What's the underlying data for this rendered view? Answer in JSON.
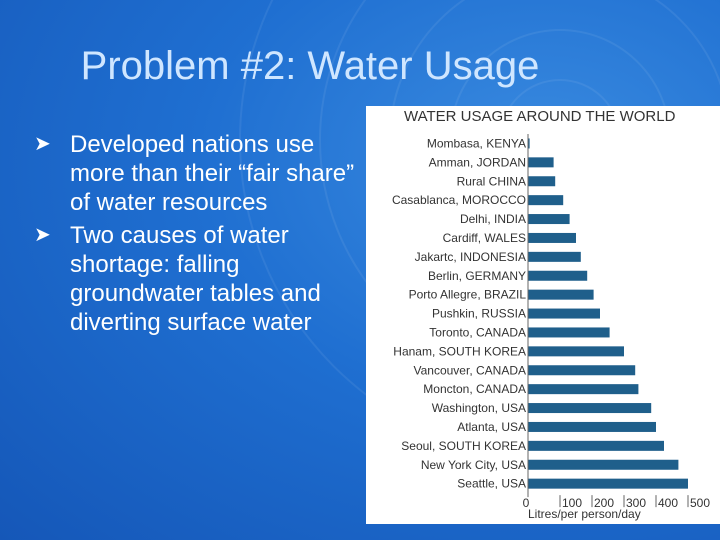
{
  "slide": {
    "title": "Problem #2:  Water Usage",
    "bullets": [
      "Developed nations use more than their “fair share” of water resources",
      "Two causes of water shortage:  falling groundwater tables and diverting surface water"
    ],
    "bullet_icon": "arrow-bullet-icon",
    "colors": {
      "background": "#1f6fd1",
      "title": "#cfe6ff",
      "text": "#ffffff",
      "bar": "#1f5f8b"
    }
  },
  "chart_data": {
    "type": "bar",
    "orientation": "horizontal",
    "title": "WATER USAGE AROUND THE WORLD",
    "xlabel": "Litres/per person/day",
    "ylabel": "",
    "categories": [
      "Mombasa, KENYA",
      "Amman, JORDAN",
      "Rural CHINA",
      "Casablanca, MOROCCO",
      "Delhi, INDIA",
      "Cardiff, WALES",
      "Jakartc, INDONESIA",
      "Berlin, GERMANY",
      "Porto Allegre, BRAZIL",
      "Pushkin, RUSSIA",
      "Toronto, CANADA",
      "Hanam, SOUTH KOREA",
      "Vancouver, CANADA",
      "Moncton, CANADA",
      "Washington, USA",
      "Atlanta, USA",
      "Seoul, SOUTH KOREA",
      "New York City, USA",
      "Seattle, USA"
    ],
    "values": [
      5,
      80,
      85,
      110,
      130,
      150,
      165,
      185,
      205,
      225,
      255,
      300,
      335,
      345,
      385,
      400,
      425,
      470,
      500
    ],
    "xlim": [
      0,
      500
    ],
    "xticks": [
      "0",
      "100",
      "200",
      "300",
      "400",
      "500"
    ],
    "grid": false,
    "legend": "none"
  }
}
